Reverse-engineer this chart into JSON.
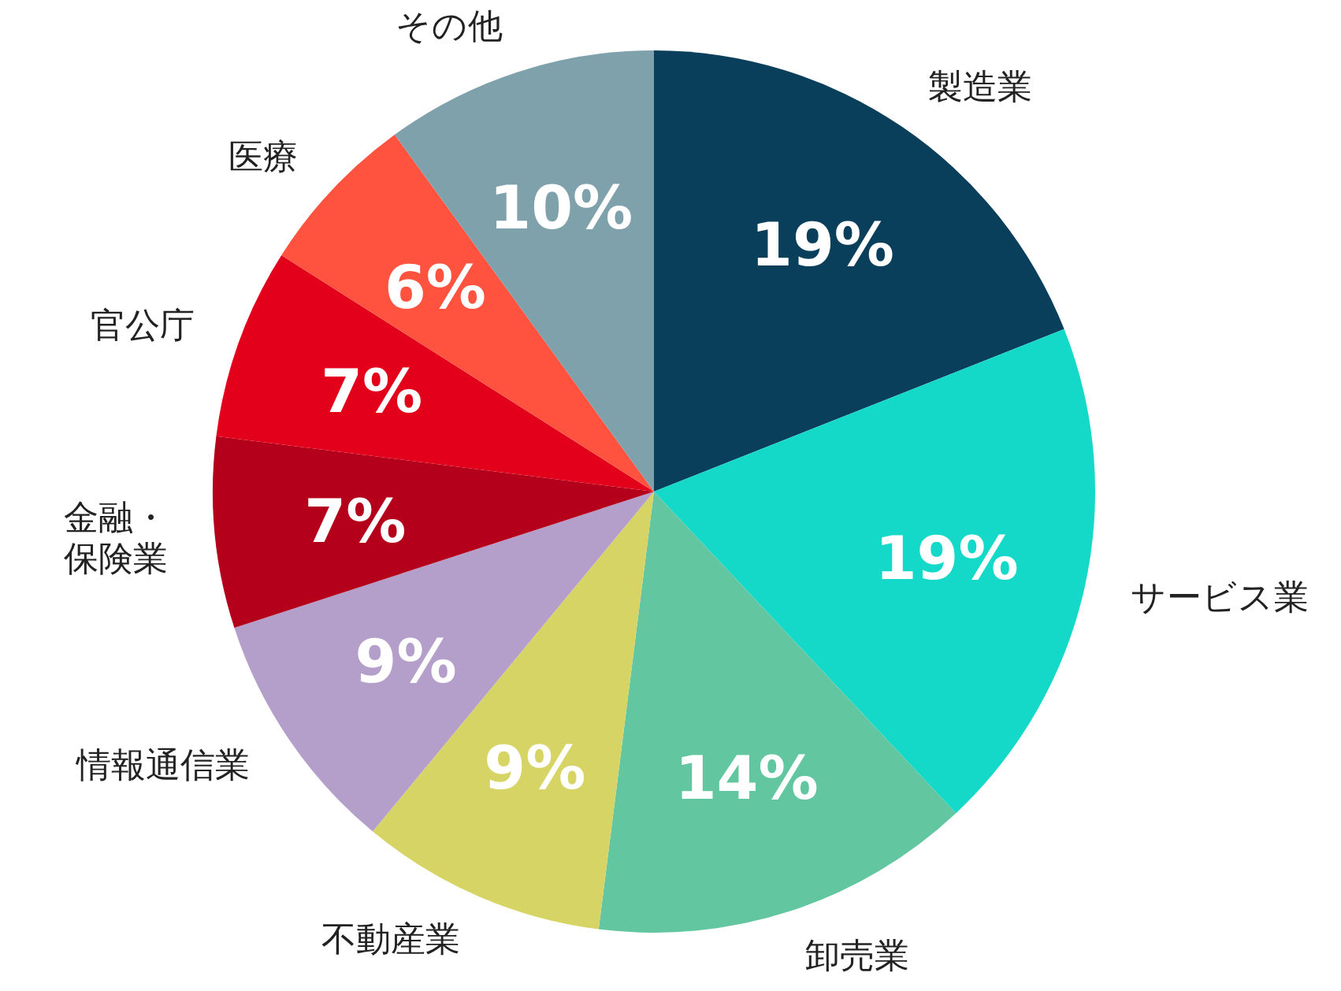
{
  "chart_data": {
    "type": "pie",
    "categories": [
      "製造業",
      "サービス業",
      "卸売業",
      "不動産業",
      "情報通信業",
      "金融・保険業",
      "官公庁",
      "医療",
      "その他"
    ],
    "values": [
      19,
      19,
      14,
      9,
      9,
      7,
      7,
      6,
      10
    ],
    "colors": [
      "#0a3f5c",
      "#14d9c9",
      "#62c6a1",
      "#d7d466",
      "#b49fcb",
      "#b5001b",
      "#e2001b",
      "#ff5340",
      "#7fa1ac"
    ],
    "value_labels": [
      "19%",
      "19%",
      "14%",
      "9%",
      "9%",
      "7%",
      "7%",
      "6%",
      "10%"
    ]
  }
}
